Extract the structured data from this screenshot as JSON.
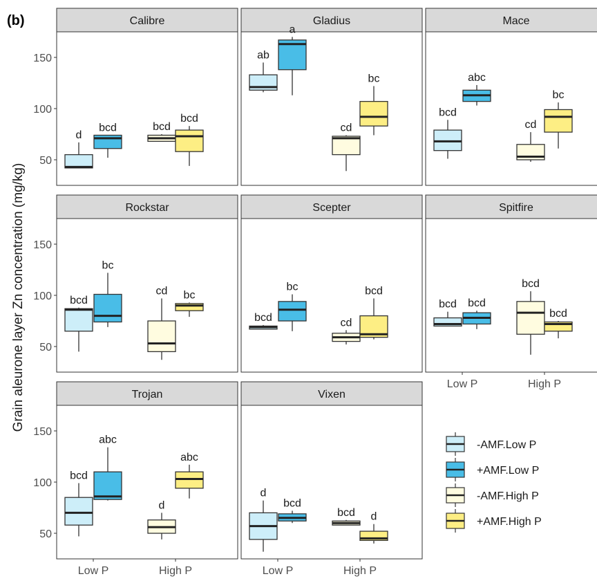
{
  "figure_tag": "(b)",
  "colors": {
    "neg_low": "#cdeef9",
    "pos_low": "#49bde7",
    "neg_high": "#fffce0",
    "pos_high": "#fdee84",
    "strip_fill": "#d9d9d9",
    "line": "#333333"
  },
  "chart_data": {
    "type": "boxplot",
    "facet_layout": "3x3",
    "ylabel": "Grain aleurone layer Zn concentration (mg/kg)",
    "ylim": [
      25,
      175
    ],
    "yticks": [
      50,
      100,
      150
    ],
    "categories": [
      "Low P",
      "High P"
    ],
    "grid": false,
    "legend_position": "bottom-right",
    "legend": [
      {
        "name": "-AMF.Low P",
        "color": "neg_low"
      },
      {
        "name": "+AMF.Low P",
        "color": "pos_low"
      },
      {
        "name": "-AMF.High P",
        "color": "neg_high"
      },
      {
        "name": "+AMF.High P",
        "color": "pos_high"
      }
    ],
    "panels": [
      {
        "name": "Calibre",
        "boxes": [
          {
            "group": "-AMF.Low P",
            "min": 42,
            "q1": 42,
            "median": 43,
            "q3": 55,
            "max": 67,
            "label": "d"
          },
          {
            "group": "+AMF.Low P",
            "min": 52,
            "q1": 61,
            "median": 71,
            "q3": 74,
            "max": 74,
            "label": "bcd"
          },
          {
            "group": "-AMF.High P",
            "min": 68,
            "q1": 68,
            "median": 71,
            "q3": 74,
            "max": 75,
            "label": "bcd"
          },
          {
            "group": "+AMF.High P",
            "min": 44,
            "q1": 58,
            "median": 73,
            "q3": 79,
            "max": 83,
            "label": "bcd"
          }
        ]
      },
      {
        "name": "Gladius",
        "boxes": [
          {
            "group": "-AMF.Low P",
            "min": 116,
            "q1": 118,
            "median": 121,
            "q3": 133,
            "max": 145,
            "label": "ab"
          },
          {
            "group": "+AMF.Low P",
            "min": 113,
            "q1": 138,
            "median": 163,
            "q3": 167,
            "max": 170,
            "label": "a"
          },
          {
            "group": "-AMF.High P",
            "min": 39,
            "q1": 55,
            "median": 71,
            "q3": 73,
            "max": 74,
            "label": "cd"
          },
          {
            "group": "+AMF.High P",
            "min": 74,
            "q1": 83,
            "median": 92,
            "q3": 107,
            "max": 122,
            "label": "bc"
          }
        ]
      },
      {
        "name": "Mace",
        "boxes": [
          {
            "group": "-AMF.Low P",
            "min": 51,
            "q1": 59,
            "median": 68,
            "q3": 79,
            "max": 89,
            "label": "bcd"
          },
          {
            "group": "+AMF.Low P",
            "min": 103,
            "q1": 107,
            "median": 113,
            "q3": 118,
            "max": 123,
            "label": "abc"
          },
          {
            "group": "-AMF.High P",
            "min": 48,
            "q1": 50,
            "median": 53,
            "q3": 65,
            "max": 77,
            "label": "cd"
          },
          {
            "group": "+AMF.High P",
            "min": 61,
            "q1": 77,
            "median": 92,
            "q3": 99,
            "max": 106,
            "label": "bc"
          }
        ]
      },
      {
        "name": "Rockstar",
        "boxes": [
          {
            "group": "-AMF.Low P",
            "min": 45,
            "q1": 65,
            "median": 86,
            "q3": 87,
            "max": 88,
            "label": "bcd"
          },
          {
            "group": "+AMF.Low P",
            "min": 69,
            "q1": 74,
            "median": 80,
            "q3": 101,
            "max": 122,
            "label": "bc"
          },
          {
            "group": "-AMF.High P",
            "min": 37,
            "q1": 45,
            "median": 53,
            "q3": 75,
            "max": 97,
            "label": "cd"
          },
          {
            "group": "+AMF.High P",
            "min": 79,
            "q1": 85,
            "median": 90,
            "q3": 92,
            "max": 93,
            "label": "bc"
          }
        ]
      },
      {
        "name": "Scepter",
        "boxes": [
          {
            "group": "-AMF.Low P",
            "min": 67,
            "q1": 67,
            "median": 69,
            "q3": 70,
            "max": 71,
            "label": "bcd"
          },
          {
            "group": "+AMF.Low P",
            "min": 65,
            "q1": 75,
            "median": 86,
            "q3": 94,
            "max": 101,
            "label": "bc"
          },
          {
            "group": "-AMF.High P",
            "min": 52,
            "q1": 55,
            "median": 59,
            "q3": 63,
            "max": 66,
            "label": "cd"
          },
          {
            "group": "+AMF.High P",
            "min": 57,
            "q1": 59,
            "median": 62,
            "q3": 80,
            "max": 97,
            "label": "bcd"
          }
        ]
      },
      {
        "name": "Spitfire",
        "boxes": [
          {
            "group": "-AMF.Low P",
            "min": 70,
            "q1": 70,
            "median": 72,
            "q3": 78,
            "max": 84,
            "label": "bcd"
          },
          {
            "group": "+AMF.Low P",
            "min": 67,
            "q1": 72,
            "median": 78,
            "q3": 83,
            "max": 85,
            "label": "bcd"
          },
          {
            "group": "-AMF.High P",
            "min": 42,
            "q1": 62,
            "median": 83,
            "q3": 94,
            "max": 104,
            "label": "bcd"
          },
          {
            "group": "+AMF.High P",
            "min": 58,
            "q1": 65,
            "median": 72,
            "q3": 74,
            "max": 75,
            "label": "bcd"
          }
        ]
      },
      {
        "name": "Trojan",
        "boxes": [
          {
            "group": "-AMF.Low P",
            "min": 47,
            "q1": 58,
            "median": 70,
            "q3": 85,
            "max": 99,
            "label": "bcd"
          },
          {
            "group": "+AMF.Low P",
            "min": 82,
            "q1": 83,
            "median": 86,
            "q3": 110,
            "max": 134,
            "label": "abc"
          },
          {
            "group": "-AMF.High P",
            "min": 44,
            "q1": 50,
            "median": 56,
            "q3": 63,
            "max": 70,
            "label": "d"
          },
          {
            "group": "+AMF.High P",
            "min": 84,
            "q1": 94,
            "median": 103,
            "q3": 110,
            "max": 117,
            "label": "abc"
          }
        ]
      },
      {
        "name": "Vixen",
        "boxes": [
          {
            "group": "-AMF.Low P",
            "min": 32,
            "q1": 44,
            "median": 57,
            "q3": 70,
            "max": 82,
            "label": "d"
          },
          {
            "group": "+AMF.Low P",
            "min": 60,
            "q1": 62,
            "median": 65,
            "q3": 69,
            "max": 72,
            "label": "bcd"
          },
          {
            "group": "-AMF.High P",
            "min": 58,
            "q1": 58,
            "median": 60,
            "q3": 62,
            "max": 63,
            "label": "bcd"
          },
          {
            "group": "+AMF.High P",
            "min": 40,
            "q1": 43,
            "median": 45,
            "q3": 52,
            "max": 59,
            "label": "d"
          }
        ]
      }
    ]
  }
}
